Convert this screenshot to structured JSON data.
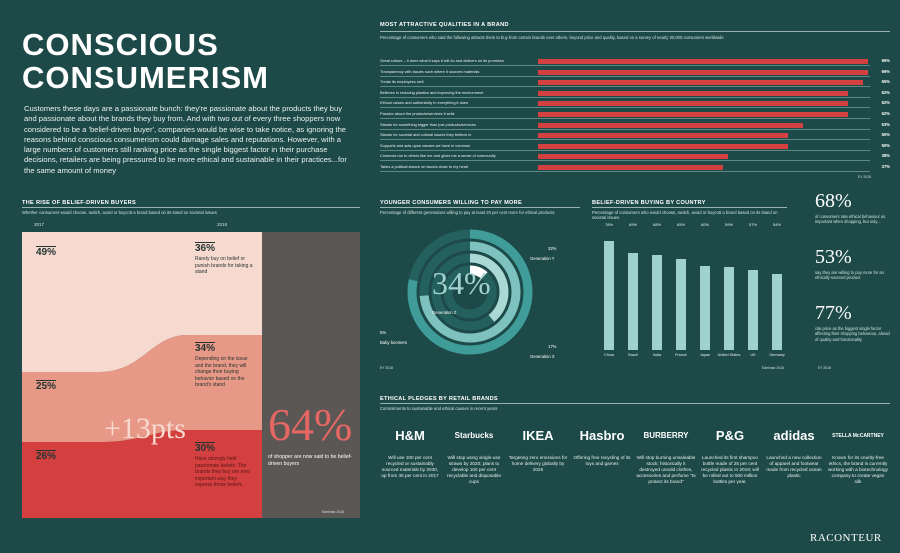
{
  "header": {
    "title_line1": "CONSCIOUS",
    "title_line2": "CONSUMERISM",
    "intro": "Customers these days are a passionate bunch: they're passionate about the products they buy and passionate about the brands they buy from. And with two out of every three shoppers now considered to be a 'belief-driven buyer', companies would be wise to take notice, as ignoring the reasons behind conscious consumerism could damage sales and reputations. However, with a large numbers of customers still ranking price as the single biggest factor in their purchase decisions, retailers are being pressured to be more ethical and sustainable in their practices...for the same amount of money"
  },
  "qualities": {
    "title": "MOST ATTRACTIVE QUALITIES IN A BRAND",
    "subtitle": "Percentage of consumers who said the following attracts them to buy from certain brands over others, beyond price and quality, based on a survey of nearly 30,000 consumers worldwide",
    "source": "EY 2018"
  },
  "rise": {
    "title": "THE RISE OF BELIEF-DRIVEN BUYERS",
    "subtitle": "Whether consumers would choose, switch, avoid or boycott a brand based on its stand on societal issues",
    "year1": "2017",
    "year2": "2018",
    "v2017_a": "49%",
    "v2017_b": "25%",
    "v2017_c": "26%",
    "v2018_a": "36%",
    "v2018_a_txt": "Rarely buy on belief or punish brands for taking a stand",
    "v2018_b": "34%",
    "v2018_b_txt": "Depending on the issue and the brand, they will change their buying behavior based on the brand's stand",
    "v2018_c": "30%",
    "v2018_c_txt": "Have strongly held passionate beliefs. The brands they buy are now important way they express those beliefs",
    "growth": "+13pts",
    "big": "64%",
    "big_txt": "of shopper are now said to be belief-driven buyers",
    "source": "Edelman 2018"
  },
  "younger": {
    "title": "YOUNGER CONSUMERS WILLING TO PAY MORE",
    "subtitle": "Percentage of different generations willing to pay at least 20 per cent more for ethical products",
    "center_value": "34%",
    "gen_z": "Generation Z",
    "gen_y_val": "32%",
    "gen_y": "Generation Y",
    "gen_x_val": "17%",
    "gen_x": "Generation X",
    "boomers_val": "5%",
    "boomers": "Baby boomers",
    "source": "EY 2018"
  },
  "country": {
    "title": "BELIEF-DRIVEN BUYING BY COUNTRY",
    "subtitle": "Percentage of consumers who would choose, switch, avoid or boycott a brand based on its stand on societal issues",
    "source": "Edelman 2018"
  },
  "stats": [
    {
      "num": "68%",
      "txt": "of consumers rate ethical behaviour as important when shopping, but only..."
    },
    {
      "num": "53%",
      "txt": "say they are willing to pay more for an ethically sourced product"
    },
    {
      "num": "77%",
      "txt": "cite price as the biggest single factor affecting their shopping behaviour, ahead of quality and functionality"
    }
  ],
  "stats_source": "EY 2018",
  "pledges": {
    "title": "ETHICAL PLEDGES BY RETAIL BRANDS",
    "subtitle": "Commitments to sustainable and ethical causes in recent years",
    "items": [
      {
        "brand": "H&M",
        "text": "Will use 100 per cent recycled or sustainably sourced materials by 2030, up from 35 per cent in 2017"
      },
      {
        "brand": "Starbucks",
        "text": "Will stop using single-use straws by 2020; plans to develop 100 per cent recyclable and disposable cups"
      },
      {
        "brand": "IKEA",
        "text": "Targeting zero emissions for home delivery globally by 2025"
      },
      {
        "brand": "Hasbro",
        "text": "Offering free recycling of its toys and games"
      },
      {
        "brand": "BURBERRY",
        "text": "Will stop burning unsaleable stock; historically it destroyed unsold clothes, accessories and perfume \"to protect its brand\""
      },
      {
        "brand": "P&G",
        "text": "Launched its first shampoo bottle made of 25 per cent recycled plastic in 2018; will be rolled out to 500 million bottles per year."
      },
      {
        "brand": "adidas",
        "text": "Launched a new collection of apparel and footwear made from recycled ocean plastic"
      },
      {
        "brand": "STELLA McCARTNEY",
        "text": "Known for its cruelty-free ethics, the brand is currently working with a biotechnology company to create vegan silk"
      }
    ]
  },
  "footer": {
    "brand": "RACONTEUR"
  },
  "colors": {
    "background": "#1d4a48",
    "accent_red": "#d3403f",
    "teal": "#9fd1cf",
    "cream": "#f6d9cf"
  },
  "chart_data": [
    {
      "type": "bar",
      "title": "MOST ATTRACTIVE QUALITIES IN A BRAND",
      "categories": [
        "Great culture – it does what it says it will do and delivers on its promises",
        "Transparency with issues such where it sources materials",
        "Treats its employees well",
        "Believes in reducing plastics and improving the environment",
        "Ethical values and authenticity in everything it does",
        "Passion about the products/services it sells",
        "Stands for something bigger than just products/services",
        "Stands for societal and cultural issues they believe in",
        "Supports and acts upon causes we have in common",
        "Connects me to others like me and gives me a sense of community",
        "Takes a political stance on issues close to my heart"
      ],
      "values": [
        66,
        66,
        65,
        62,
        62,
        62,
        53,
        50,
        50,
        38,
        37
      ],
      "ylim": [
        0,
        66
      ]
    },
    {
      "type": "pie",
      "title": "YOUNGER CONSUMERS WILLING TO PAY MORE",
      "categories": [
        "Generation Z",
        "Generation Y",
        "Generation X",
        "Baby boomers"
      ],
      "values": [
        34,
        32,
        17,
        5
      ]
    },
    {
      "type": "bar",
      "title": "BELIEF-DRIVEN BUYING BY COUNTRY",
      "categories": [
        "China",
        "Brazil",
        "India",
        "France",
        "Japan",
        "United States",
        "UK",
        "Germany"
      ],
      "values": [
        78,
        69,
        68,
        65,
        60,
        59,
        57,
        54
      ],
      "ylim": [
        0,
        80
      ]
    },
    {
      "type": "area",
      "title": "THE RISE OF BELIEF-DRIVEN BUYERS",
      "categories": [
        "2017",
        "2018"
      ],
      "series": [
        {
          "values": [
            49,
            36
          ]
        },
        {
          "values": [
            25,
            34
          ]
        },
        {
          "values": [
            26,
            30
          ]
        }
      ],
      "ylim": [
        0,
        100
      ]
    }
  ]
}
